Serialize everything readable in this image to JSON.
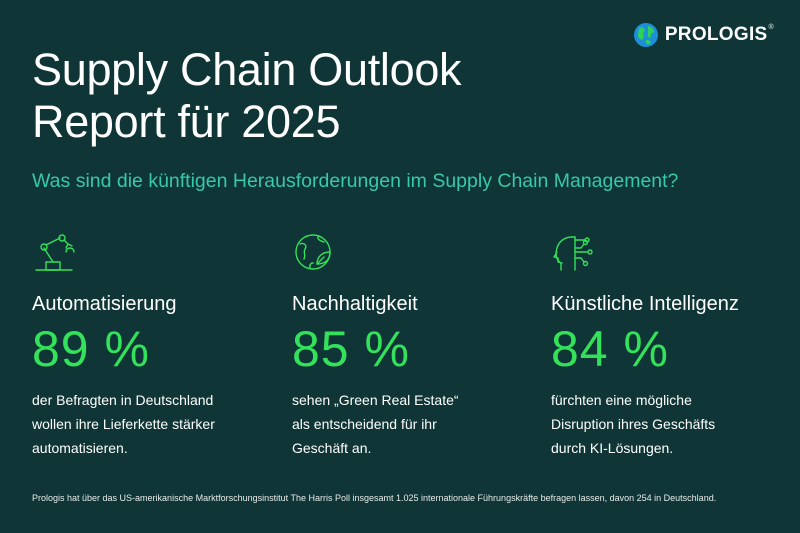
{
  "logo": {
    "brand_text_bold": "PRO",
    "brand_text_rest": "LOGIS",
    "trademark": "®"
  },
  "title_line1": "Supply Chain Outlook",
  "title_line2": "Report für 2025",
  "subtitle": "Was sind die künftigen Herausforderungen im Supply Chain Management?",
  "columns": [
    {
      "icon": "robot-arm-icon",
      "heading": "Automatisierung",
      "percent": "89 %",
      "desc_lines": [
        "der Befragten in Deutschland",
        "wollen ihre Lieferkette stärker",
        "automatisieren."
      ]
    },
    {
      "icon": "globe-leaf-icon",
      "heading": "Nachhaltigkeit",
      "percent": "85 %",
      "desc_lines": [
        "sehen „Green Real Estate“",
        "als entscheidend für ihr",
        "Geschäft an."
      ]
    },
    {
      "icon": "ai-head-icon",
      "heading": "Künstliche Intelligenz",
      "percent": "84 %",
      "desc_lines": [
        "fürchten eine mögliche",
        "Disruption ihres Geschäfts",
        "durch KI-Lösungen."
      ]
    }
  ],
  "footnote": "Prologis hat über das US-amerikanische Marktforschungsinstitut The Harris Poll insgesamt 1.025 internationale Führungskräfte befragen lassen, davon 254 in Deutschland.",
  "colors": {
    "background": "#0f3536",
    "accent_teal": "#37c9a9",
    "accent_green": "#34e15a"
  }
}
